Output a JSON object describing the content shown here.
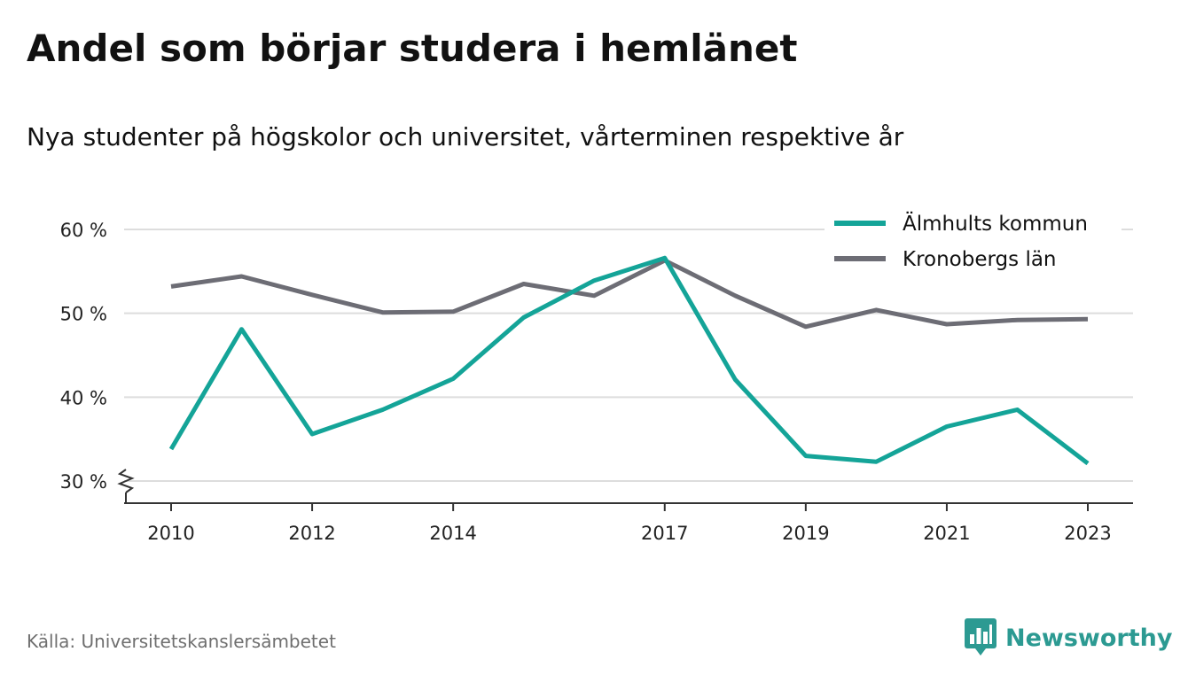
{
  "title": "Andel som börjar studera i hemlänet",
  "subtitle": "Nya studenter på högskolor och universitet, vårterminen respektive år",
  "source": "Källa: Universitetskanslersämbetet",
  "brand": {
    "name": "Newsworthy",
    "icon": "bar-chart-speech-bubble-icon",
    "color": "#2c9a92"
  },
  "colors": {
    "grid": "#dddddd",
    "axis": "#333333"
  },
  "chart_data": {
    "type": "line",
    "x": [
      2010,
      2011,
      2012,
      2013,
      2014,
      2015,
      2016,
      2017,
      2018,
      2019,
      2020,
      2021,
      2022,
      2023
    ],
    "x_tick_labels": [
      "2010",
      "2012",
      "2014",
      "2017",
      "2019",
      "2021",
      "2023"
    ],
    "y_ticks": [
      30,
      40,
      50,
      60
    ],
    "y_tick_labels": [
      "30 %",
      "40 %",
      "50 %",
      "60 %"
    ],
    "ylim": [
      27.5,
      60
    ],
    "y_axis_break": true,
    "grid": true,
    "legend_position": "top-right",
    "series": [
      {
        "name": "Älmhults kommun",
        "color": "#14a498",
        "values": [
          33.8,
          48.1,
          35.6,
          38.5,
          42.2,
          49.5,
          53.9,
          56.6,
          42.1,
          33.0,
          32.3,
          36.5,
          38.5,
          32.1
        ]
      },
      {
        "name": "Kronobergs län",
        "color": "#6d6d75",
        "values": [
          53.2,
          54.4,
          52.2,
          50.1,
          50.2,
          53.5,
          52.1,
          56.3,
          52.1,
          48.4,
          50.4,
          48.7,
          49.2,
          49.3
        ]
      }
    ]
  }
}
